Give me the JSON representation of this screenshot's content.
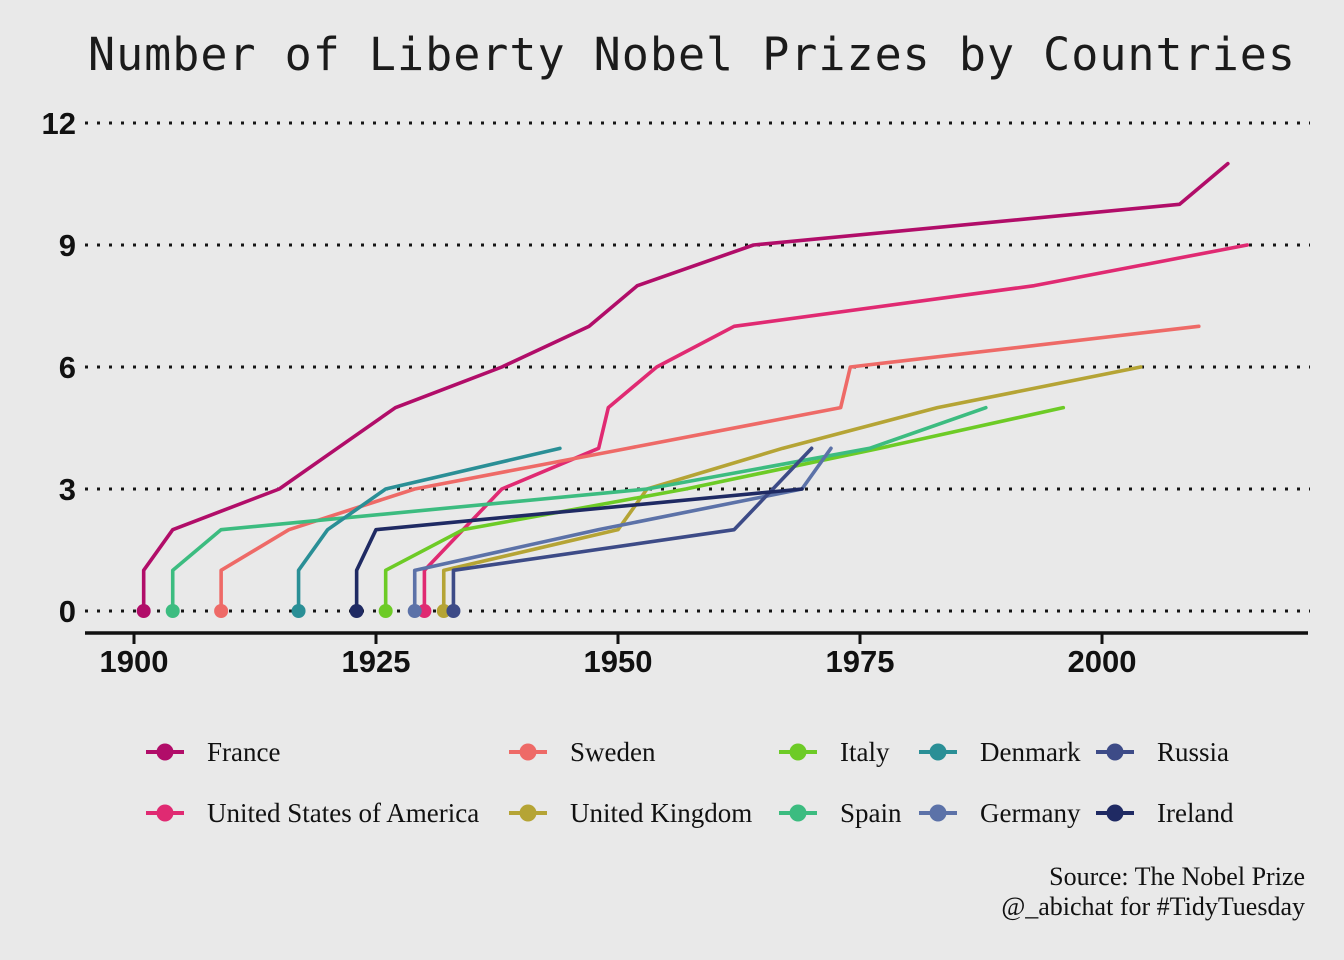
{
  "title": "Number of Liberty Nobel Prizes by Countries",
  "source": {
    "line1": "Source: The Nobel Prize",
    "line2": "@_abichat for #TidyTuesday"
  },
  "chart_data": {
    "type": "line",
    "title": "Number of Liberty Nobel Prizes by Countries",
    "xlabel": "",
    "ylabel": "",
    "x_ticks": [
      1900,
      1925,
      1950,
      1975,
      2000
    ],
    "y_ticks": [
      0,
      3,
      6,
      9,
      12
    ],
    "xlim": [
      1895,
      2021
    ],
    "ylim": [
      0,
      12
    ],
    "grid": "dotted horizontal",
    "legend_position": "bottom",
    "legend_rows": [
      [
        "France",
        "Sweden",
        "Italy",
        "Denmark",
        "Russia"
      ],
      [
        "United States of America",
        "United Kingdom",
        "Spain",
        "Germany",
        "Ireland"
      ]
    ],
    "series": [
      {
        "name": "France",
        "color": "#b10d69",
        "points": [
          [
            1901,
            0
          ],
          [
            1901,
            1
          ],
          [
            1904,
            2
          ],
          [
            1915,
            3
          ],
          [
            1921,
            4
          ],
          [
            1927,
            5
          ],
          [
            1938,
            6
          ],
          [
            1947,
            7
          ],
          [
            1952,
            8
          ],
          [
            1964,
            9
          ],
          [
            2008,
            10
          ],
          [
            2013,
            11
          ]
        ]
      },
      {
        "name": "United States of America",
        "color": "#e02a72",
        "points": [
          [
            1930,
            0
          ],
          [
            1930,
            1
          ],
          [
            1934,
            2
          ],
          [
            1938,
            3
          ],
          [
            1948,
            4
          ],
          [
            1949,
            5
          ],
          [
            1954,
            6
          ],
          [
            1962,
            7
          ],
          [
            1993,
            8
          ],
          [
            2015,
            9
          ]
        ]
      },
      {
        "name": "Sweden",
        "color": "#ee6a67",
        "points": [
          [
            1909,
            0
          ],
          [
            1909,
            1
          ],
          [
            1916,
            2
          ],
          [
            1929,
            3
          ],
          [
            1951,
            4
          ],
          [
            1973,
            5
          ],
          [
            1974,
            6
          ],
          [
            2010,
            7
          ]
        ]
      },
      {
        "name": "United Kingdom",
        "color": "#b5a435",
        "points": [
          [
            1932,
            0
          ],
          [
            1932,
            1
          ],
          [
            1950,
            2
          ],
          [
            1953,
            3
          ],
          [
            1967,
            4
          ],
          [
            1983,
            5
          ],
          [
            2004,
            6
          ]
        ]
      },
      {
        "name": "Italy",
        "color": "#6dcb26",
        "points": [
          [
            1926,
            0
          ],
          [
            1926,
            1
          ],
          [
            1934,
            2
          ],
          [
            1957,
            3
          ],
          [
            1977,
            4
          ],
          [
            1996,
            5
          ]
        ]
      },
      {
        "name": "Spain",
        "color": "#3cbc80",
        "points": [
          [
            1904,
            0
          ],
          [
            1904,
            1
          ],
          [
            1909,
            2
          ],
          [
            1953,
            3
          ],
          [
            1976,
            4
          ],
          [
            1988,
            5
          ]
        ]
      },
      {
        "name": "Denmark",
        "color": "#2a8f96",
        "points": [
          [
            1917,
            0
          ],
          [
            1917,
            1
          ],
          [
            1920,
            2
          ],
          [
            1926,
            3
          ],
          [
            1944,
            4
          ]
        ]
      },
      {
        "name": "Germany",
        "color": "#5c72a8",
        "points": [
          [
            1929,
            0
          ],
          [
            1929,
            1
          ],
          [
            1948,
            2
          ],
          [
            1969,
            3
          ],
          [
            1972,
            4
          ]
        ]
      },
      {
        "name": "Russia",
        "color": "#3d4b87",
        "points": [
          [
            1933,
            0
          ],
          [
            1933,
            1
          ],
          [
            1962,
            2
          ],
          [
            1966,
            3
          ],
          [
            1970,
            4
          ]
        ]
      },
      {
        "name": "Ireland",
        "color": "#1f2a63",
        "points": [
          [
            1923,
            0
          ],
          [
            1923,
            1
          ],
          [
            1925,
            2
          ],
          [
            1969,
            3
          ]
        ]
      }
    ]
  }
}
